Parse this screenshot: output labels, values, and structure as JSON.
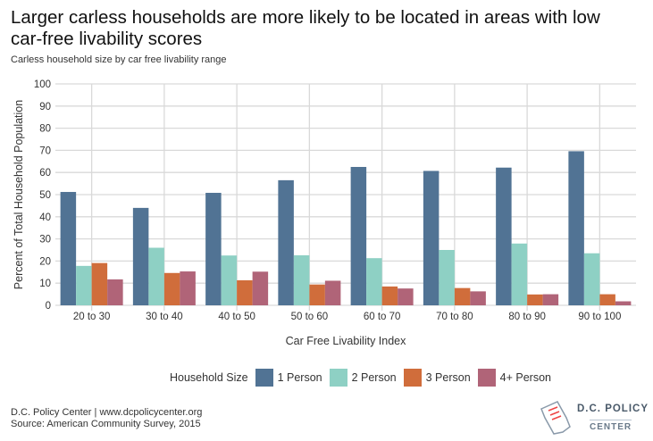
{
  "title": "Larger carless households are more likely to be located in areas with low car-free livability scores",
  "subtitle": "Carless household size by car free livability range",
  "source_lines": [
    "D.C. Policy Center | www.dcpolicycenter.org",
    "Source: American Community Survey, 2015"
  ],
  "logo": {
    "line1": "D.C. POLICY",
    "line2": "CENTER"
  },
  "chart_data": {
    "type": "bar",
    "xlabel": "Car Free Livability Index",
    "ylabel": "Percent of Total Household Population",
    "ylim": [
      0,
      100
    ],
    "yticks": [
      0,
      10,
      20,
      30,
      40,
      50,
      60,
      70,
      80,
      90,
      100
    ],
    "grid": true,
    "legend_title": "Household Size",
    "legend_position": "bottom",
    "categories": [
      "20 to 30",
      "30 to 40",
      "40 to 50",
      "50 to 60",
      "60 to 70",
      "70 to 80",
      "80 to 90",
      "90 to 100"
    ],
    "series": [
      {
        "name": "1 Person",
        "color": "#517394",
        "values": [
          51.2,
          44.0,
          50.8,
          56.5,
          62.5,
          60.7,
          62.2,
          69.6
        ]
      },
      {
        "name": "2 Person",
        "color": "#8ed0c4",
        "values": [
          17.8,
          26.0,
          22.5,
          22.6,
          21.3,
          25.0,
          27.9,
          23.5
        ]
      },
      {
        "name": "3 Person",
        "color": "#d06d3b",
        "values": [
          19.1,
          14.6,
          11.3,
          9.4,
          8.5,
          7.8,
          4.9,
          5.0
        ]
      },
      {
        "name": "4+ Person",
        "color": "#b06478",
        "values": [
          11.7,
          15.3,
          15.2,
          11.1,
          7.6,
          6.3,
          5.0,
          1.8
        ]
      }
    ]
  }
}
